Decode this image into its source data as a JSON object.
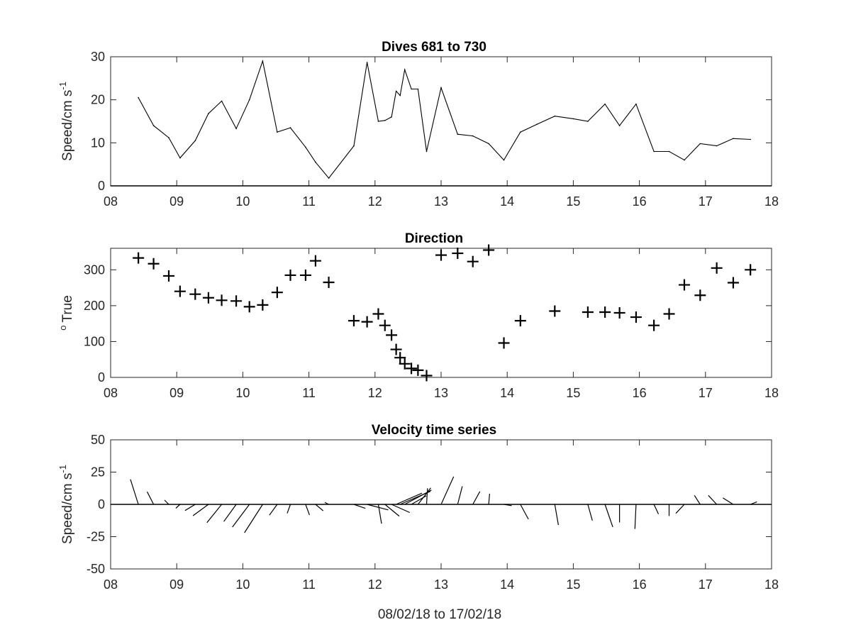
{
  "x_axis_label": "08/02/18 to 17/02/18",
  "chart_data": [
    {
      "type": "line",
      "title": "Dives 681 to 730",
      "ylabel": "Speed/cm s",
      "ylabel_superscript": "-1",
      "xlim": [
        8,
        18
      ],
      "ylim": [
        0,
        30
      ],
      "xticks": [
        8,
        9,
        10,
        11,
        12,
        13,
        14,
        15,
        16,
        17,
        18
      ],
      "xtick_labels": [
        "08",
        "09",
        "10",
        "11",
        "12",
        "13",
        "14",
        "15",
        "16",
        "17",
        "18"
      ],
      "yticks": [
        0,
        10,
        20,
        30
      ],
      "grid": false,
      "x": [
        8.42,
        8.65,
        8.88,
        9.05,
        9.28,
        9.48,
        9.68,
        9.9,
        10.1,
        10.3,
        10.52,
        10.72,
        10.95,
        11.1,
        11.3,
        11.68,
        11.88,
        12.05,
        12.15,
        12.25,
        12.32,
        12.38,
        12.45,
        12.55,
        12.65,
        12.78,
        13.0,
        13.25,
        13.48,
        13.72,
        13.95,
        14.2,
        14.45,
        14.72,
        15.0,
        15.22,
        15.48,
        15.7,
        15.95,
        16.22,
        16.45,
        16.68,
        16.92,
        17.17,
        17.42,
        17.68
      ],
      "y": [
        20.5,
        14.0,
        11.2,
        6.5,
        10.5,
        16.8,
        19.7,
        13.3,
        20.0,
        29.0,
        12.5,
        13.5,
        9.0,
        5.5,
        1.8,
        9.3,
        28.7,
        15.0,
        15.2,
        16.0,
        22.0,
        21.0,
        27.0,
        22.5,
        22.5,
        8.0,
        22.8,
        12.0,
        11.6,
        9.8,
        6.0,
        12.5,
        14.3,
        16.2,
        15.6,
        15.0,
        19.0,
        14.0,
        19.0,
        8.0,
        8.0,
        6.0,
        9.8,
        9.3,
        11.0,
        10.8
      ]
    },
    {
      "type": "scatter",
      "title": "Direction",
      "ylabel": "True",
      "ylabel_superscript": "o",
      "xlim": [
        8,
        18
      ],
      "ylim": [
        0,
        360
      ],
      "xticks": [
        8,
        9,
        10,
        11,
        12,
        13,
        14,
        15,
        16,
        17,
        18
      ],
      "xtick_labels": [
        "08",
        "09",
        "10",
        "11",
        "12",
        "13",
        "14",
        "15",
        "16",
        "17",
        "18"
      ],
      "yticks": [
        0,
        100,
        200,
        300
      ],
      "grid": false,
      "marker": "+",
      "x": [
        8.42,
        8.65,
        8.88,
        9.05,
        9.28,
        9.48,
        9.68,
        9.9,
        10.1,
        10.3,
        10.52,
        10.72,
        10.95,
        11.1,
        11.3,
        11.68,
        11.88,
        12.05,
        12.15,
        12.25,
        12.32,
        12.38,
        12.45,
        12.55,
        12.65,
        12.78,
        13.0,
        13.25,
        13.48,
        13.72,
        13.95,
        14.2,
        14.72,
        15.22,
        15.48,
        15.7,
        15.95,
        16.22,
        16.45,
        16.68,
        16.92,
        17.17,
        17.42,
        17.68
      ],
      "y": [
        333,
        317,
        283,
        240,
        232,
        222,
        215,
        213,
        197,
        202,
        237,
        285,
        285,
        325,
        265,
        158,
        155,
        177,
        145,
        118,
        78,
        55,
        38,
        25,
        20,
        5,
        341,
        346,
        323,
        355,
        96,
        158,
        185,
        182,
        182,
        180,
        168,
        145,
        177,
        258,
        229,
        305,
        264,
        300
      ]
    },
    {
      "type": "stick",
      "title": "Velocity time series",
      "ylabel": "Speed/cm s",
      "ylabel_superscript": "-1",
      "xlim": [
        8,
        18
      ],
      "ylim": [
        -50,
        50
      ],
      "xticks": [
        8,
        9,
        10,
        11,
        12,
        13,
        14,
        15,
        16,
        17,
        18
      ],
      "xtick_labels": [
        "08",
        "09",
        "10",
        "11",
        "12",
        "13",
        "14",
        "15",
        "16",
        "17",
        "18"
      ],
      "yticks": [
        -50,
        -25,
        0,
        25,
        50
      ],
      "ytick_labels": [
        "-50",
        "-25",
        "0",
        "25",
        "50"
      ],
      "grid": false,
      "x": [
        8.42,
        8.65,
        8.88,
        9.05,
        9.28,
        9.48,
        9.68,
        9.9,
        10.1,
        10.3,
        10.52,
        10.72,
        10.95,
        11.1,
        11.3,
        11.68,
        11.88,
        12.05,
        12.15,
        12.25,
        12.32,
        12.38,
        12.45,
        12.55,
        12.65,
        12.78,
        13.0,
        13.25,
        13.48,
        13.72,
        13.95,
        14.2,
        14.72,
        15.22,
        15.48,
        15.7,
        15.95,
        16.22,
        16.45,
        16.68,
        16.92,
        17.17,
        17.42,
        17.68
      ],
      "u": [
        -6.2,
        -5.0,
        -3.3,
        -3.3,
        -7.9,
        -12.0,
        -11.4,
        -9.6,
        -13.2,
        -14.1,
        -6.0,
        -2.5,
        3.0,
        6.0,
        -3.0,
        8.9,
        16.4,
        2.5,
        11.1,
        14.1,
        20.0,
        23.5,
        20.7,
        11.5,
        9.9,
        0.7,
        9.7,
        3.6,
        5.5,
        0.7,
        6.0,
        6.2,
        2.8,
        3.5,
        6.0,
        0.0,
        -0.9,
        3.5,
        0.0,
        -6.6,
        -4.5,
        -6.5,
        -8.0,
        5.0
      ],
      "v": [
        19.4,
        9.8,
        3.3,
        -3.0,
        -4.8,
        -8.8,
        -14.2,
        -13.3,
        -17.6,
        -22.0,
        -8.3,
        -6.9,
        -8.2,
        -5.0,
        1.5,
        -3.1,
        -4.3,
        -14.9,
        -9.1,
        -6.3,
        8.7,
        10.1,
        11.1,
        6.6,
        12.8,
        12.5,
        21.5,
        14.0,
        10.0,
        8.3,
        -1.0,
        -11.5,
        -16.0,
        -12.5,
        -17.5,
        -14.0,
        -19.0,
        -7.5,
        -9.0,
        -7.0,
        7.0,
        7.0,
        5.0,
        2.0
      ]
    }
  ]
}
